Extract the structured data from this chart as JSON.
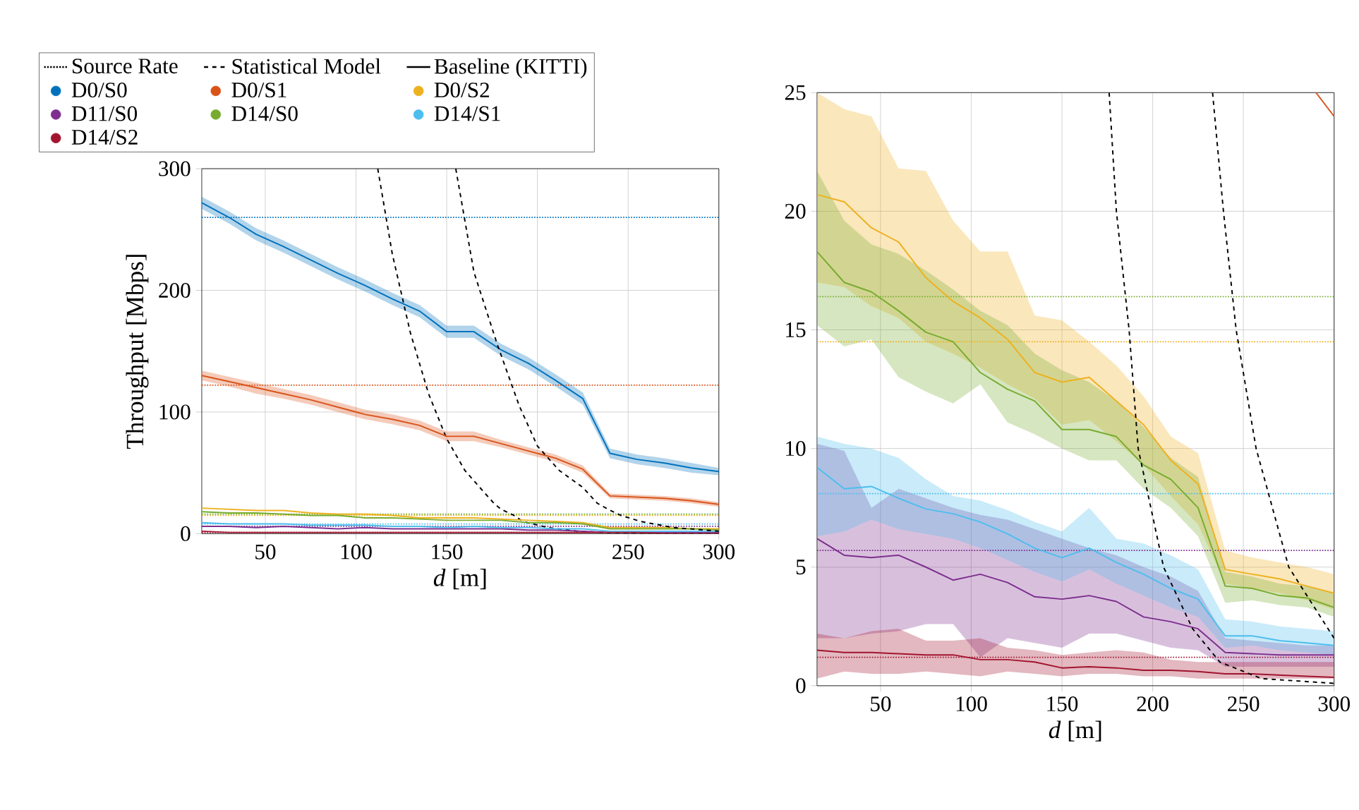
{
  "chart_data": [
    {
      "type": "line",
      "xlabel": "*d* [m]",
      "ylabel": "Throughput [Mbps]",
      "xlim": [
        15,
        300
      ],
      "ylim": [
        0,
        300
      ],
      "xticks": [
        50,
        100,
        150,
        200,
        250,
        300
      ],
      "yticks": [
        0,
        100,
        200,
        300
      ],
      "grid": true,
      "legend": "top",
      "x": [
        15,
        30,
        45,
        60,
        75,
        90,
        105,
        120,
        135,
        150,
        165,
        180,
        195,
        210,
        225,
        240,
        255,
        270,
        285,
        300
      ],
      "series": [
        {
          "name": "Source Rate",
          "color": "#000000",
          "line_style": "dotted",
          "values": [
            null,
            null,
            null,
            null,
            null,
            null,
            null,
            null,
            null,
            null,
            null,
            null,
            null,
            null,
            null,
            null,
            null,
            null,
            null,
            null
          ]
        },
        {
          "name": "Statistical Model",
          "color": "#000000",
          "line_style": "dashed",
          "x": [
            112,
            120,
            130,
            140,
            150,
            160,
            170,
            176,
            180,
            187,
            192,
            206,
            222,
            237,
            260,
            300
          ],
          "values": [
            300,
            230,
            165,
            115,
            78,
            52,
            35,
            25,
            20,
            15,
            10,
            5,
            2,
            1,
            0,
            0
          ]
        },
        {
          "name": "Baseline (KITTI)",
          "color": "#000000",
          "line_style": "solid",
          "values": [
            null,
            null,
            null,
            null,
            null,
            null,
            null,
            null,
            null,
            null,
            null,
            null,
            null,
            null,
            null,
            null,
            null,
            null,
            null,
            null
          ]
        },
        {
          "name": "D0/S0",
          "color": "#0072bd",
          "values": [
            272,
            260,
            246,
            236,
            225,
            214,
            204,
            193,
            183,
            166,
            166,
            151,
            140,
            126,
            111,
            66,
            61,
            58,
            54,
            51
          ],
          "lower": [
            267,
            255,
            241,
            231,
            220,
            209,
            199,
            188,
            178,
            161,
            161,
            146,
            135,
            121,
            106,
            62,
            57,
            54,
            50,
            48
          ],
          "upper": [
            277,
            265,
            251,
            241,
            230,
            219,
            209,
            198,
            188,
            171,
            171,
            156,
            145,
            131,
            116,
            70,
            65,
            62,
            58,
            54
          ]
        },
        {
          "name": "D0/S1",
          "color": "#d95319",
          "values": [
            130,
            125,
            120,
            115,
            110,
            104,
            98,
            94,
            89,
            80,
            80,
            74,
            68,
            62,
            53,
            31,
            30,
            29,
            27,
            24
          ],
          "lower": [
            126,
            121,
            115,
            111,
            106,
            100,
            94,
            90,
            85,
            76,
            76,
            71,
            65,
            59,
            50,
            29,
            28,
            27,
            25,
            22
          ],
          "upper": [
            134,
            129,
            124,
            119,
            114,
            108,
            102,
            98,
            93,
            84,
            84,
            77,
            71,
            65,
            56,
            33,
            32,
            31,
            29,
            26
          ]
        },
        {
          "name": "D0/S2",
          "color": "#edb120",
          "values": [
            21,
            20,
            19,
            19,
            17,
            16,
            16,
            15,
            13,
            13,
            13,
            12,
            11,
            10,
            9,
            5,
            5,
            5,
            4,
            4
          ]
        },
        {
          "name": "D11/S0",
          "color": "#7e2f8e",
          "values": [
            6,
            6,
            5,
            6,
            5,
            4,
            5,
            4,
            4,
            4,
            4,
            4,
            3,
            3,
            2,
            1,
            1,
            1,
            1,
            1
          ]
        },
        {
          "name": "D14/S0",
          "color": "#77ac30",
          "values": [
            18,
            17,
            17,
            16,
            15,
            15,
            13,
            13,
            12,
            11,
            11,
            11,
            9,
            9,
            8,
            4,
            4,
            4,
            4,
            3
          ]
        },
        {
          "name": "D14/S1",
          "color": "#4dbeee",
          "values": [
            9,
            8,
            8,
            8,
            7,
            7,
            7,
            6,
            6,
            5,
            6,
            5,
            5,
            4,
            4,
            2,
            2,
            2,
            2,
            2
          ]
        },
        {
          "name": "D14/S2",
          "color": "#a2142f",
          "values": [
            2,
            1,
            1,
            1,
            1,
            1,
            1,
            1,
            1,
            1,
            1,
            1,
            1,
            1,
            1,
            1,
            1,
            0,
            0,
            0
          ]
        },
        {
          "color": "#000000",
          "line_style": "dashed",
          "x": [
            155,
            165,
            178,
            190,
            200,
            212,
            225,
            233,
            239,
            246,
            257,
            275,
            300
          ],
          "values": [
            300,
            215,
            155,
            105,
            72,
            52,
            38,
            25,
            20,
            15,
            10,
            5,
            2
          ]
        }
      ],
      "ref_lines": [
        {
          "axis": "y",
          "value": 260,
          "color": "#0072bd",
          "line_style": "dotted"
        },
        {
          "axis": "y",
          "value": 122,
          "color": "#d95319",
          "line_style": "dotted"
        },
        {
          "axis": "y",
          "value": 15,
          "color": "#edb120",
          "line_style": "dotted"
        },
        {
          "axis": "y",
          "value": 6,
          "color": "#7e2f8e",
          "line_style": "dotted"
        },
        {
          "axis": "y",
          "value": 16,
          "color": "#77ac30",
          "line_style": "dotted"
        },
        {
          "axis": "y",
          "value": 8,
          "color": "#4dbeee",
          "line_style": "dotted"
        },
        {
          "axis": "y",
          "value": 1,
          "color": "#a2142f",
          "line_style": "dotted"
        }
      ]
    },
    {
      "type": "line",
      "xlabel": "*d* [m]",
      "xlim": [
        15,
        300
      ],
      "ylim": [
        0,
        25
      ],
      "xticks": [
        50,
        100,
        150,
        200,
        250,
        300
      ],
      "yticks": [
        0,
        5,
        10,
        15,
        20,
        25
      ],
      "grid": true,
      "x": [
        15,
        30,
        45,
        60,
        75,
        90,
        105,
        120,
        135,
        150,
        165,
        180,
        195,
        210,
        225,
        240,
        255,
        270,
        285,
        300
      ],
      "series": [
        {
          "color": "#d95319",
          "x": [
            290,
            300
          ],
          "values": [
            25,
            24
          ]
        },
        {
          "color": "#edb120",
          "values": [
            20.7,
            20.4,
            19.3,
            18.7,
            17.2,
            16.2,
            15.5,
            14.6,
            13.2,
            12.8,
            13.0,
            12.0,
            11.0,
            9.5,
            8.5,
            4.9,
            4.7,
            4.5,
            4.2,
            3.9
          ],
          "lower": [
            17.0,
            16.8,
            16.0,
            15.5,
            14.5,
            14.0,
            13.4,
            12.7,
            12.1,
            11.0,
            11.2,
            10.3,
            9.3,
            8.0,
            6.8,
            4.3,
            4.1,
            3.9,
            3.6,
            3.2
          ],
          "upper": [
            25.0,
            24.3,
            24.0,
            21.8,
            21.7,
            19.6,
            18.3,
            18.3,
            15.6,
            15.4,
            14.5,
            13.5,
            12.2,
            10.5,
            9.8,
            5.7,
            5.4,
            5.2,
            5.0,
            4.7
          ]
        },
        {
          "color": "#7e2f8e",
          "values": [
            6.2,
            5.5,
            5.4,
            5.5,
            5.0,
            4.45,
            4.7,
            4.35,
            3.75,
            3.65,
            3.8,
            3.55,
            2.9,
            2.7,
            2.4,
            1.4,
            1.35,
            1.3,
            1.3,
            1.3
          ],
          "lower": [
            2.0,
            2.0,
            2.2,
            2.3,
            2.6,
            2.6,
            1.2,
            2.0,
            1.8,
            1.6,
            2.2,
            2.2,
            1.9,
            1.6,
            1.5,
            0.8,
            0.8,
            0.8,
            0.8,
            0.8
          ],
          "upper": [
            10.2,
            9.9,
            7.5,
            8.3,
            7.9,
            7.5,
            7.2,
            7.0,
            6.6,
            6.2,
            5.8,
            5.5,
            5.0,
            4.6,
            4.0,
            2.0,
            1.9,
            1.8,
            1.7,
            1.7
          ]
        },
        {
          "color": "#77ac30",
          "values": [
            18.3,
            17.0,
            16.6,
            15.8,
            14.9,
            14.5,
            13.2,
            12.5,
            12.0,
            10.8,
            10.8,
            10.5,
            9.3,
            8.7,
            7.5,
            4.2,
            4.1,
            3.8,
            3.7,
            3.3
          ],
          "lower": [
            15.2,
            14.3,
            14.6,
            13.0,
            12.4,
            11.9,
            12.7,
            11.1,
            10.6,
            10.0,
            9.5,
            9.5,
            8.3,
            7.5,
            6.3,
            3.5,
            3.6,
            3.4,
            3.3,
            2.9
          ],
          "upper": [
            21.7,
            19.6,
            18.6,
            18.2,
            17.5,
            16.7,
            15.8,
            15.2,
            14.0,
            13.3,
            12.8,
            12.0,
            10.9,
            9.6,
            8.8,
            4.8,
            4.6,
            4.3,
            4.2,
            3.9
          ]
        },
        {
          "color": "#4dbeee",
          "values": [
            9.2,
            8.3,
            8.4,
            7.9,
            7.45,
            7.25,
            6.9,
            6.4,
            5.8,
            5.4,
            5.8,
            5.2,
            4.7,
            4.1,
            3.65,
            2.1,
            2.1,
            1.9,
            1.8,
            1.7
          ],
          "lower": [
            6.3,
            6.5,
            7.0,
            6.6,
            6.4,
            6.2,
            5.8,
            5.3,
            4.8,
            4.4,
            4.9,
            4.3,
            3.8,
            3.3,
            2.9,
            1.6,
            1.7,
            1.5,
            1.4,
            1.3
          ],
          "upper": [
            10.5,
            10.2,
            10.0,
            9.6,
            8.7,
            8.0,
            7.8,
            7.4,
            6.9,
            6.5,
            7.5,
            6.2,
            6.0,
            5.5,
            4.9,
            2.8,
            2.7,
            2.5,
            2.4,
            2.3
          ]
        },
        {
          "color": "#a2142f",
          "values": [
            1.5,
            1.4,
            1.4,
            1.35,
            1.3,
            1.3,
            1.1,
            1.1,
            1.0,
            0.75,
            0.8,
            0.75,
            0.65,
            0.65,
            0.6,
            0.5,
            0.5,
            0.45,
            0.4,
            0.35
          ],
          "lower": [
            0.3,
            0.6,
            0.5,
            0.5,
            0.6,
            0.5,
            0.4,
            0.6,
            0.5,
            0.4,
            0.5,
            0.5,
            0.4,
            0.4,
            0.3,
            0.3,
            0.3,
            0.3,
            0.3,
            0.3
          ],
          "upper": [
            2.2,
            2.0,
            2.3,
            2.4,
            1.9,
            1.9,
            2.0,
            1.6,
            1.5,
            1.3,
            1.4,
            1.5,
            1.4,
            1.1,
            1.0,
            1.0,
            1.0,
            1.0,
            1.0,
            1.0
          ]
        },
        {
          "color": "#000000",
          "line_style": "dashed",
          "x": [
            176,
            180,
            187,
            192,
            206,
            222,
            237,
            260,
            300
          ],
          "values": [
            25,
            20,
            15,
            10,
            5,
            2.4,
            1,
            0.3,
            0.1
          ]
        },
        {
          "color": "#000000",
          "line_style": "dashed",
          "x": [
            233,
            239,
            246,
            257,
            275,
            300
          ],
          "values": [
            25,
            20,
            15,
            10,
            5,
            2
          ]
        }
      ],
      "ref_lines": [
        {
          "axis": "y",
          "value": 16.4,
          "color": "#77ac30",
          "line_style": "dotted"
        },
        {
          "axis": "y",
          "value": 14.5,
          "color": "#edb120",
          "line_style": "dotted"
        },
        {
          "axis": "y",
          "value": 8.1,
          "color": "#4dbeee",
          "line_style": "dotted"
        },
        {
          "axis": "y",
          "value": 5.7,
          "color": "#7e2f8e",
          "line_style": "dotted"
        },
        {
          "axis": "y",
          "value": 1.2,
          "color": "#a2142f",
          "line_style": "dotted"
        }
      ]
    }
  ]
}
